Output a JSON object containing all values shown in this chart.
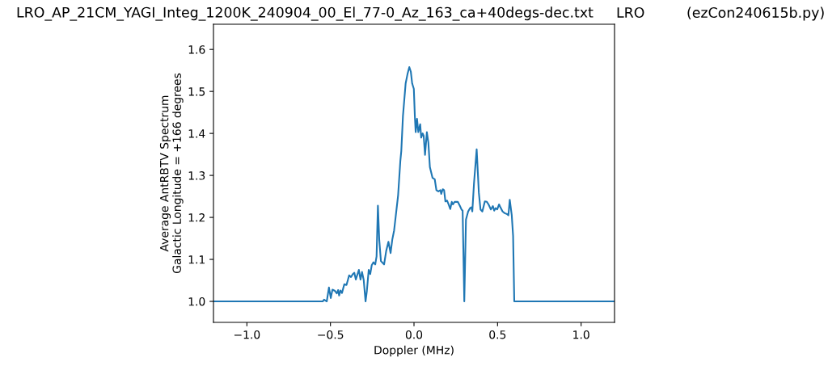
{
  "chart_data": {
    "type": "line",
    "title": "LRO_AP_21CM_YAGI_Integ_1200K_240904_00_El_77-0_Az_163_ca+40degs-dec.txt",
    "annotations": [
      "LRO",
      "(ezCon240615b.py)"
    ],
    "xlabel": "Doppler (MHz)",
    "ylabel": "Average AntRBTV Spectrum\nGalactic Longitude = +166 degrees",
    "xlim": [
      -1.2,
      1.2
    ],
    "ylim": [
      0.95,
      1.66
    ],
    "xticks": [
      {
        "value": -1.0,
        "label": "−1.0"
      },
      {
        "value": -0.5,
        "label": "−0.5"
      },
      {
        "value": 0,
        "label": "0.0"
      },
      {
        "value": 0.5,
        "label": "0.5"
      },
      {
        "value": 1.0,
        "label": "1.0"
      }
    ],
    "yticks": [
      {
        "value": 1.0,
        "label": "1.0"
      },
      1.1,
      1.2,
      1.3,
      1.4,
      1.5,
      1.6
    ],
    "grid": false,
    "legend": false,
    "marker": "none",
    "line_style": "solid",
    "series": [
      {
        "color": "#1f77b4",
        "x": [
          -1.2,
          -0.546,
          -0.538,
          -0.522,
          -0.509,
          -0.498,
          -0.488,
          -0.473,
          -0.462,
          -0.454,
          -0.448,
          -0.44,
          -0.431,
          -0.417,
          -0.404,
          -0.388,
          -0.377,
          -0.366,
          -0.357,
          -0.348,
          -0.33,
          -0.32,
          -0.311,
          -0.301,
          -0.29,
          -0.282,
          -0.271,
          -0.262,
          -0.253,
          -0.243,
          -0.232,
          -0.224,
          -0.216,
          -0.208,
          -0.198,
          -0.179,
          -0.166,
          -0.153,
          -0.14,
          -0.13,
          -0.119,
          -0.095,
          -0.082,
          -0.076,
          -0.066,
          -0.05,
          -0.039,
          -0.028,
          -0.019,
          -0.011,
          -0.001,
          0.005,
          0.01,
          0.018,
          0.026,
          0.037,
          0.043,
          0.052,
          0.058,
          0.066,
          0.077,
          0.086,
          0.095,
          0.111,
          0.124,
          0.134,
          0.146,
          0.158,
          0.163,
          0.172,
          0.18,
          0.188,
          0.198,
          0.208,
          0.217,
          0.226,
          0.233,
          0.243,
          0.262,
          0.275,
          0.284,
          0.291,
          0.301,
          0.311,
          0.324,
          0.335,
          0.343,
          0.349,
          0.359,
          0.375,
          0.388,
          0.398,
          0.409,
          0.424,
          0.436,
          0.446,
          0.46,
          0.472,
          0.48,
          0.488,
          0.498,
          0.509,
          0.517,
          0.53,
          0.543,
          0.557,
          0.565,
          0.573,
          0.585,
          0.593,
          0.6,
          1.2
        ],
        "values": [
          1.0,
          1.0,
          1.004,
          1.0,
          1.033,
          1.008,
          1.028,
          1.025,
          1.019,
          1.027,
          1.014,
          1.026,
          1.02,
          1.041,
          1.039,
          1.062,
          1.058,
          1.065,
          1.068,
          1.052,
          1.075,
          1.052,
          1.07,
          1.051,
          1.0,
          1.025,
          1.075,
          1.065,
          1.086,
          1.093,
          1.088,
          1.107,
          1.228,
          1.147,
          1.096,
          1.088,
          1.121,
          1.142,
          1.115,
          1.147,
          1.169,
          1.253,
          1.333,
          1.358,
          1.442,
          1.519,
          1.541,
          1.558,
          1.547,
          1.519,
          1.506,
          1.442,
          1.403,
          1.435,
          1.403,
          1.422,
          1.39,
          1.4,
          1.394,
          1.349,
          1.403,
          1.378,
          1.32,
          1.294,
          1.291,
          1.265,
          1.262,
          1.265,
          1.256,
          1.267,
          1.265,
          1.238,
          1.24,
          1.23,
          1.22,
          1.237,
          1.231,
          1.237,
          1.237,
          1.227,
          1.219,
          1.216,
          1.0,
          1.195,
          1.214,
          1.222,
          1.224,
          1.214,
          1.281,
          1.362,
          1.259,
          1.219,
          1.214,
          1.238,
          1.237,
          1.231,
          1.219,
          1.227,
          1.216,
          1.222,
          1.219,
          1.231,
          1.224,
          1.214,
          1.21,
          1.208,
          1.205,
          1.242,
          1.205,
          1.156,
          1.0,
          1.0
        ]
      }
    ]
  }
}
